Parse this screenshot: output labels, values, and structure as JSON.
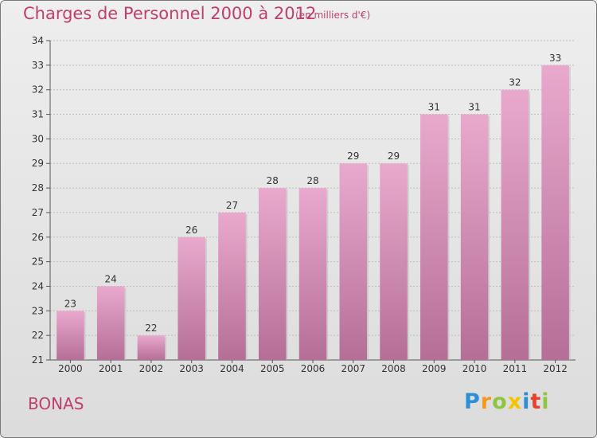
{
  "header": {
    "title": "Charges de Personnel 2000 à 2012",
    "subtitle": "(en milliers d'€)"
  },
  "footer": {
    "location": "BONAS",
    "logo_text": "Proxiti",
    "logo_letters": [
      {
        "char": "P",
        "color": "#2a8fd6"
      },
      {
        "char": "r",
        "color": "#f39a1e"
      },
      {
        "char": "o",
        "color": "#8dc63f"
      },
      {
        "char": "x",
        "color": "#f3c400"
      },
      {
        "char": "i",
        "color": "#2a8fd6"
      },
      {
        "char": "t",
        "color": "#e8412c"
      },
      {
        "char": "i",
        "color": "#8dc63f"
      }
    ]
  },
  "colors": {
    "accent": "#c03e6e",
    "bar_top": "#e9a9cd",
    "bar_bottom": "#b56f97",
    "grid": "#bdbdbd",
    "axis_text": "#333333"
  },
  "chart_data": {
    "type": "bar",
    "title": "Charges de Personnel 2000 à 2012",
    "subtitle": "(en milliers d'€)",
    "categories": [
      "2000",
      "2001",
      "2002",
      "2003",
      "2004",
      "2005",
      "2006",
      "2007",
      "2008",
      "2009",
      "2010",
      "2011",
      "2012"
    ],
    "values": [
      23,
      24,
      22,
      26,
      27,
      28,
      28,
      29,
      29,
      31,
      31,
      32,
      33
    ],
    "xlabel": "",
    "ylabel": "",
    "ylim": [
      21,
      34
    ],
    "yticks": [
      21,
      22,
      23,
      24,
      25,
      26,
      27,
      28,
      29,
      30,
      31,
      32,
      33,
      34
    ],
    "grid": true,
    "data_labels": true
  }
}
